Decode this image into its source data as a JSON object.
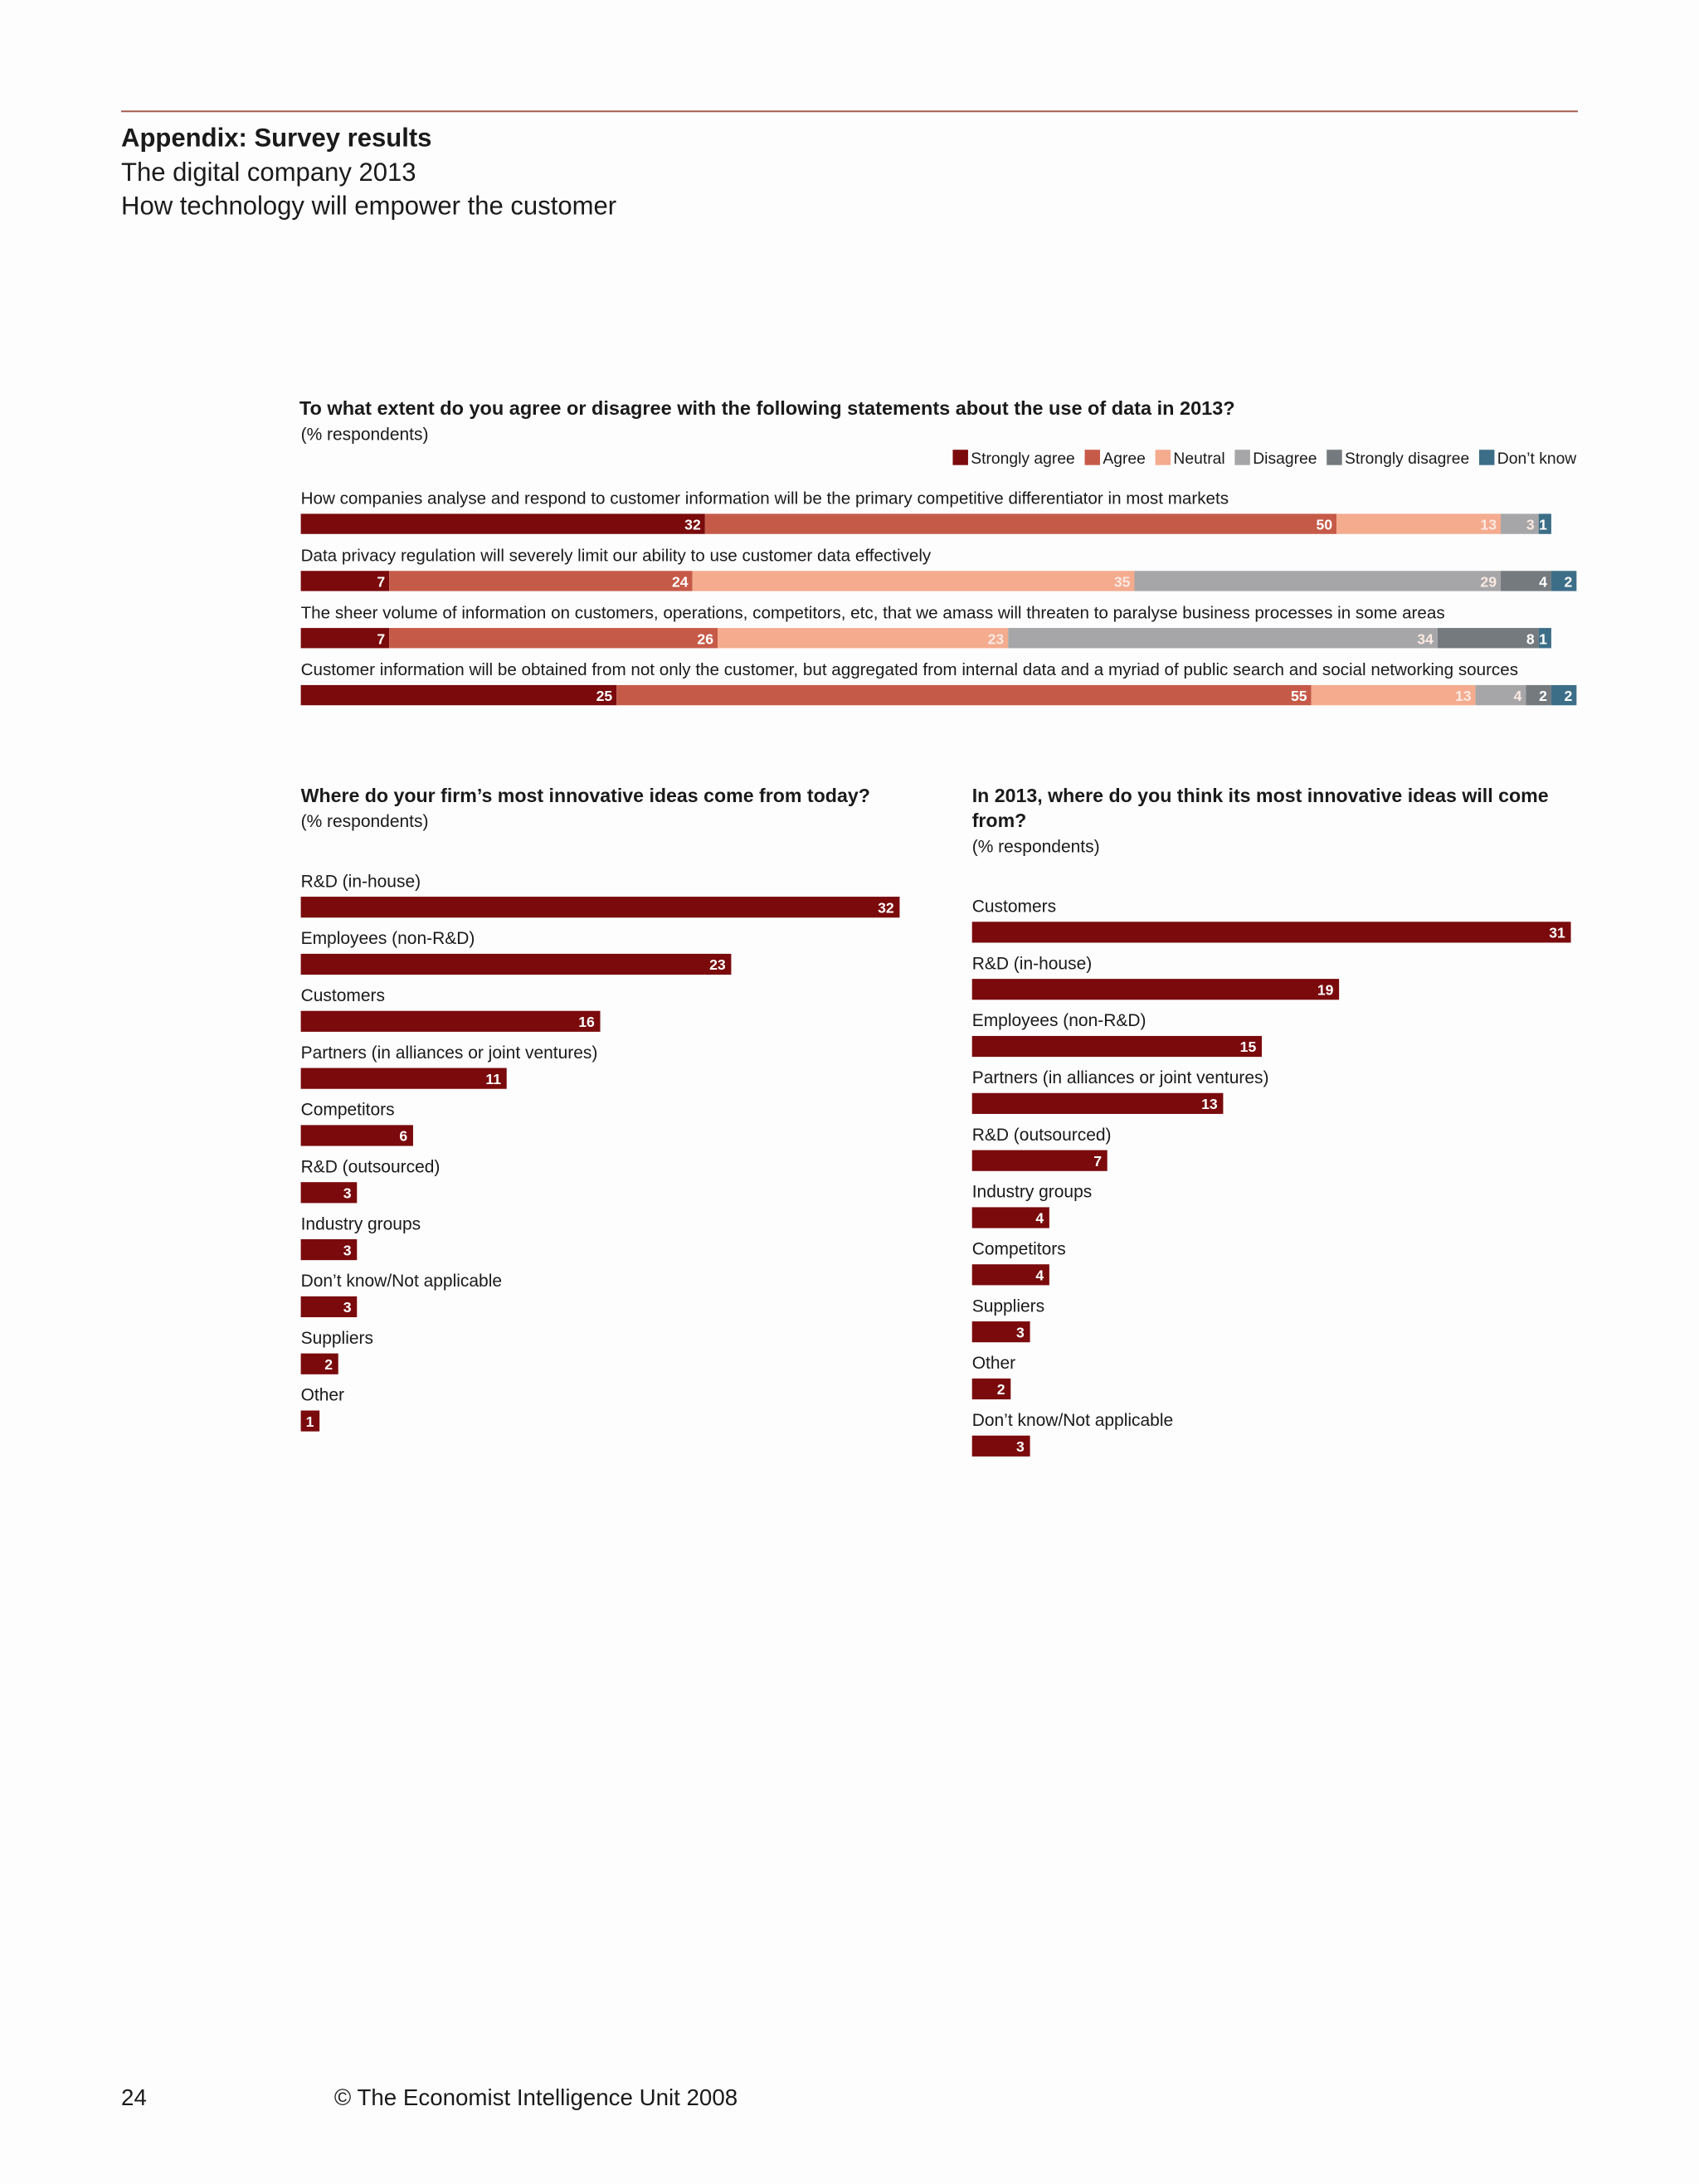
{
  "header": {
    "title": "Appendix: Survey results",
    "subtitle": "The digital company 2013",
    "subtitle2": "How technology will empower the customer"
  },
  "chart_data": [
    {
      "type": "bar",
      "stacked": true,
      "title": "To what extent do you agree or disagree with the following statements about the use of data in 2013?",
      "subtitle": "(% respondents)",
      "categories": [
        "How companies analyse and respond to customer information will be the primary competitive differentiator in most markets",
        "Data privacy regulation will severely limit our ability to use customer data effectively",
        "The sheer volume of information on customers, operations, competitors, etc, that we amass will threaten to paralyse business processes in some areas",
        "Customer information will be obtained from not only the customer, but aggregated from internal data and a myriad of public search and social networking sources"
      ],
      "series": [
        {
          "name": "Strongly agree",
          "color": "#7a0a0c",
          "values": [
            32,
            7,
            7,
            25
          ]
        },
        {
          "name": "Agree",
          "color": "#c65a48",
          "values": [
            50,
            24,
            26,
            55
          ]
        },
        {
          "name": "Neutral",
          "color": "#f4ab8e",
          "values": [
            13,
            35,
            23,
            13
          ]
        },
        {
          "name": "Disagree",
          "color": "#a6a6a8",
          "values": [
            3,
            29,
            34,
            4
          ]
        },
        {
          "name": "Strongly disagree",
          "color": "#747a7e",
          "values": [
            null,
            4,
            8,
            2
          ]
        },
        {
          "name": "Don’t know",
          "color": "#3d6e88",
          "values": [
            1,
            2,
            1,
            2
          ]
        }
      ],
      "xlim": [
        0,
        100
      ],
      "legend": "top-right"
    },
    {
      "type": "bar",
      "title": "Where do your firm’s most innovative ideas come from today?",
      "subtitle": "(% respondents)",
      "color": "#7a0a0c",
      "categories": [
        "R&D (in-house)",
        "Employees (non-R&D)",
        "Customers",
        "Partners (in alliances or joint ventures)",
        "Competitors",
        "R&D (outsourced)",
        "Industry groups",
        "Don’t know/Not applicable",
        "Suppliers",
        "Other"
      ],
      "values": [
        32,
        23,
        16,
        11,
        6,
        3,
        3,
        3,
        2,
        1
      ],
      "xlim": [
        0,
        32
      ]
    },
    {
      "type": "bar",
      "title": "In 2013, where do you think its most innovative ideas will come from?",
      "subtitle": "(% respondents)",
      "color": "#7a0a0c",
      "categories": [
        "Customers",
        "R&D (in-house)",
        "Employees (non-R&D)",
        "Partners (in alliances or joint ventures)",
        "R&D (outsourced)",
        "Industry groups",
        "Competitors",
        "Suppliers",
        "Other",
        "Don’t know/Not applicable"
      ],
      "values": [
        31,
        19,
        15,
        13,
        7,
        4,
        4,
        3,
        2,
        3
      ],
      "xlim": [
        0,
        31
      ]
    }
  ],
  "footer": {
    "page": "24",
    "copyright": "© The Economist Intelligence Unit 2008"
  }
}
